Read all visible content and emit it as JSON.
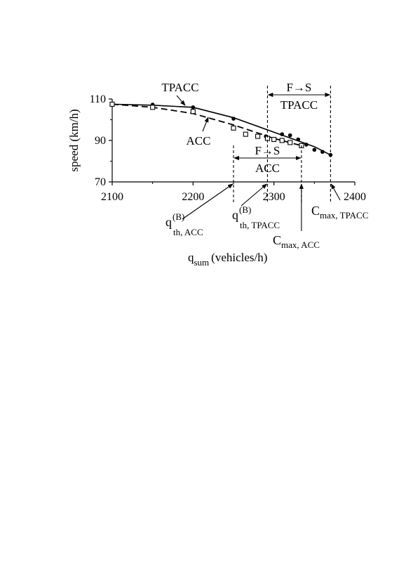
{
  "chart_data": {
    "type": "line",
    "xlabel": "q",
    "xlabel_sub": "sum",
    "xlabel_unit": "(vehicles/h)",
    "ylabel": "speed (km/h)",
    "xlim": [
      2100,
      2400
    ],
    "ylim": [
      70,
      110
    ],
    "x_ticks": [
      2100,
      2200,
      2300,
      2400
    ],
    "y_ticks": [
      70,
      90,
      110
    ],
    "x_tick_labels": [
      "2100",
      "2200",
      "2300",
      "2400"
    ],
    "y_tick_labels": [
      "70",
      "90",
      "110"
    ],
    "grid": false,
    "series": [
      {
        "name": "TPACC",
        "style": "solid-line",
        "line_x": [
          2100,
          2150,
          2200,
          2250,
          2300,
          2350,
          2370
        ],
        "line_y": [
          107.5,
          107.0,
          106.0,
          101.0,
          94.0,
          87.0,
          83.0
        ],
        "markers": "filled-circle",
        "points_x": [
          2100,
          2150,
          2200,
          2250,
          2290,
          2310,
          2320,
          2330,
          2340,
          2350,
          2360,
          2370
        ],
        "points_y": [
          107.5,
          107.3,
          106.0,
          100.5,
          92.0,
          93.0,
          92.5,
          90.5,
          88.0,
          85.5,
          84.5,
          83.0
        ]
      },
      {
        "name": "ACC",
        "style": "dashed-line",
        "line_x": [
          2100,
          2150,
          2200,
          2250,
          2300,
          2334
        ],
        "line_y": [
          107.5,
          106.0,
          103.0,
          97.5,
          91.0,
          87.5
        ],
        "markers": "open-square",
        "points_x": [
          2100,
          2150,
          2200,
          2250,
          2265,
          2280,
          2292,
          2300,
          2310,
          2320,
          2334
        ],
        "points_y": [
          107.5,
          106.0,
          104.0,
          96.0,
          93.0,
          92.0,
          91.0,
          90.5,
          90.0,
          89.0,
          87.5
        ]
      }
    ],
    "annotations": {
      "tpacc_label": "TPACC",
      "acc_label": "ACC",
      "fs_tpacc_range": "F→S",
      "fs_tpacc_sub": "TPACC",
      "fs_acc_range": "F→S",
      "fs_acc_sub": "ACC",
      "q_th_acc": {
        "main": "q",
        "sup": "(B)",
        "sub": "th, ACC",
        "x": 2250
      },
      "q_th_tpacc": {
        "main": "q",
        "sup": "(B)",
        "sub": "th, TPACC",
        "x": 2292
      },
      "c_max_acc": {
        "main": "C",
        "sub": "max, ACC",
        "x": 2334
      },
      "c_max_tpacc": {
        "main": "C",
        "sub": "max, TPACC",
        "x": 2370
      }
    }
  }
}
